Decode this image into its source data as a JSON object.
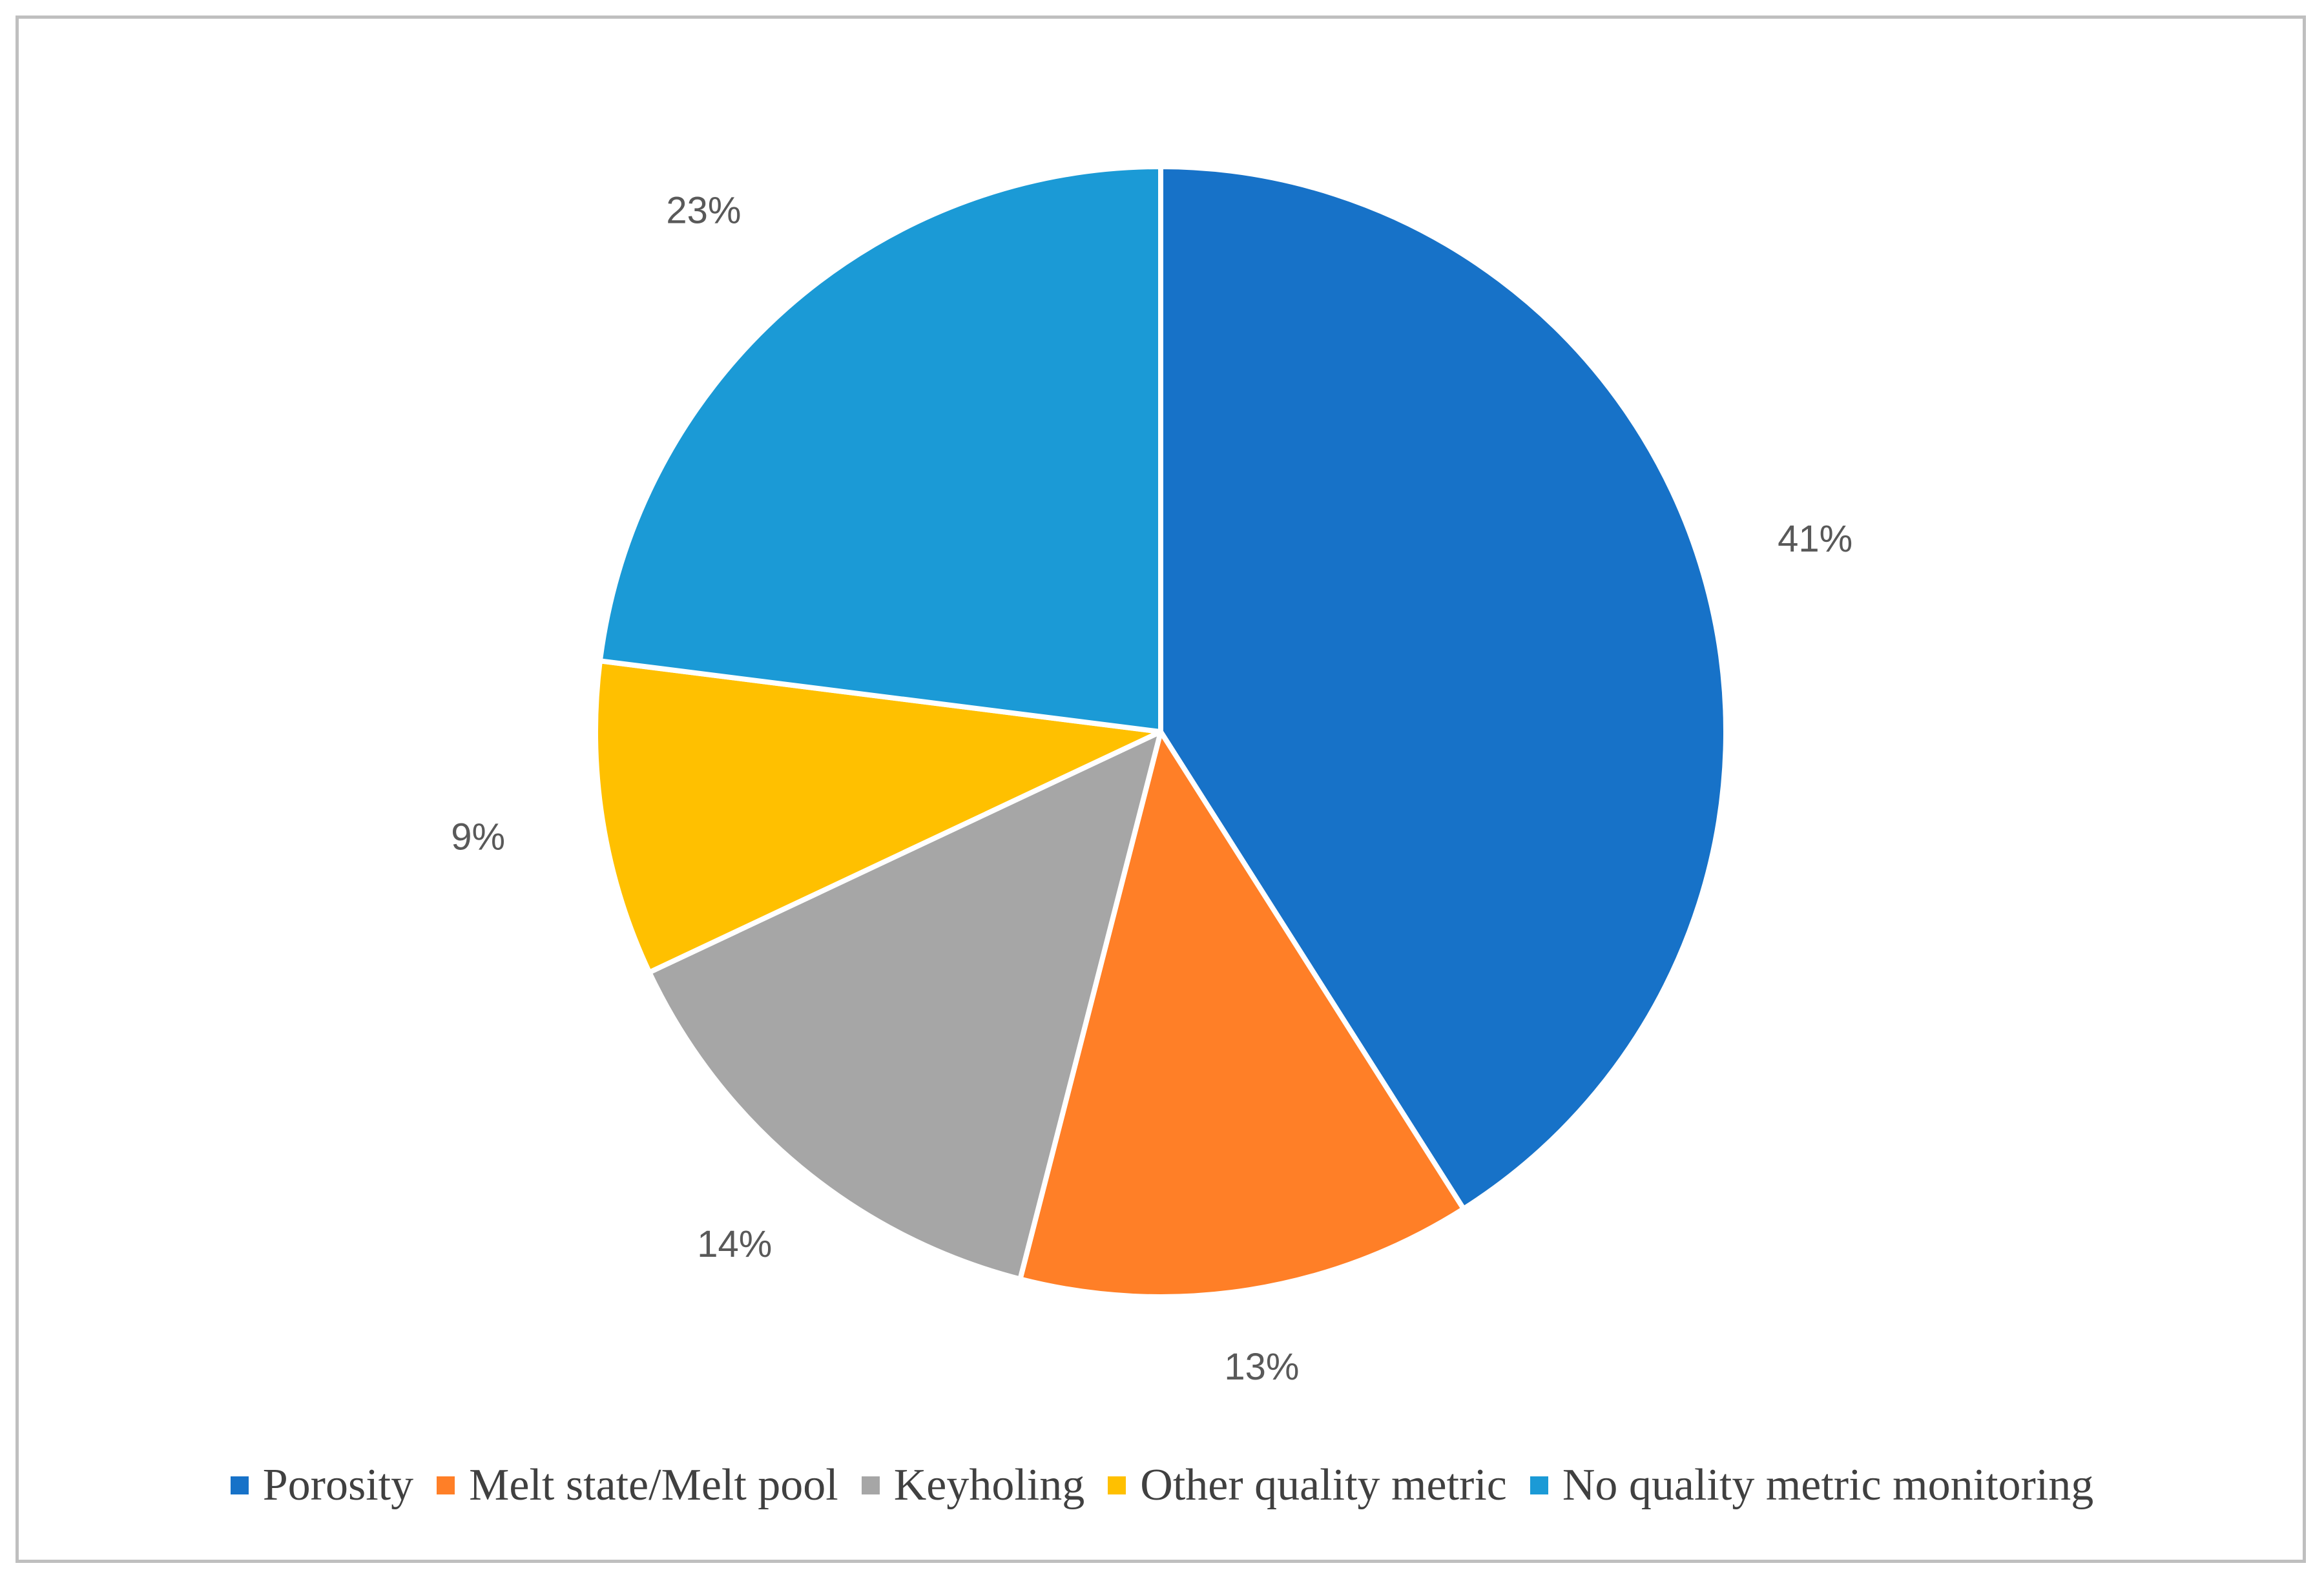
{
  "chart_data": {
    "type": "pie",
    "title": "",
    "legend_position": "bottom",
    "start_angle_deg": 0,
    "direction": "clockwise",
    "slices": [
      {
        "label": "Porosity",
        "value": 41,
        "display": "41%",
        "color": "#1772C8"
      },
      {
        "label": "Melt state/Melt pool",
        "value": 13,
        "display": "13%",
        "color": "#FF7F27"
      },
      {
        "label": "Keyholing",
        "value": 14,
        "display": "14%",
        "color": "#A6A6A6"
      },
      {
        "label": "Other quality metric",
        "value": 9,
        "display": "9%",
        "color": "#FFC000"
      },
      {
        "label": "No quality metric monitoring",
        "value": 23,
        "display": "23%",
        "color": "#1B9AD6"
      }
    ]
  }
}
